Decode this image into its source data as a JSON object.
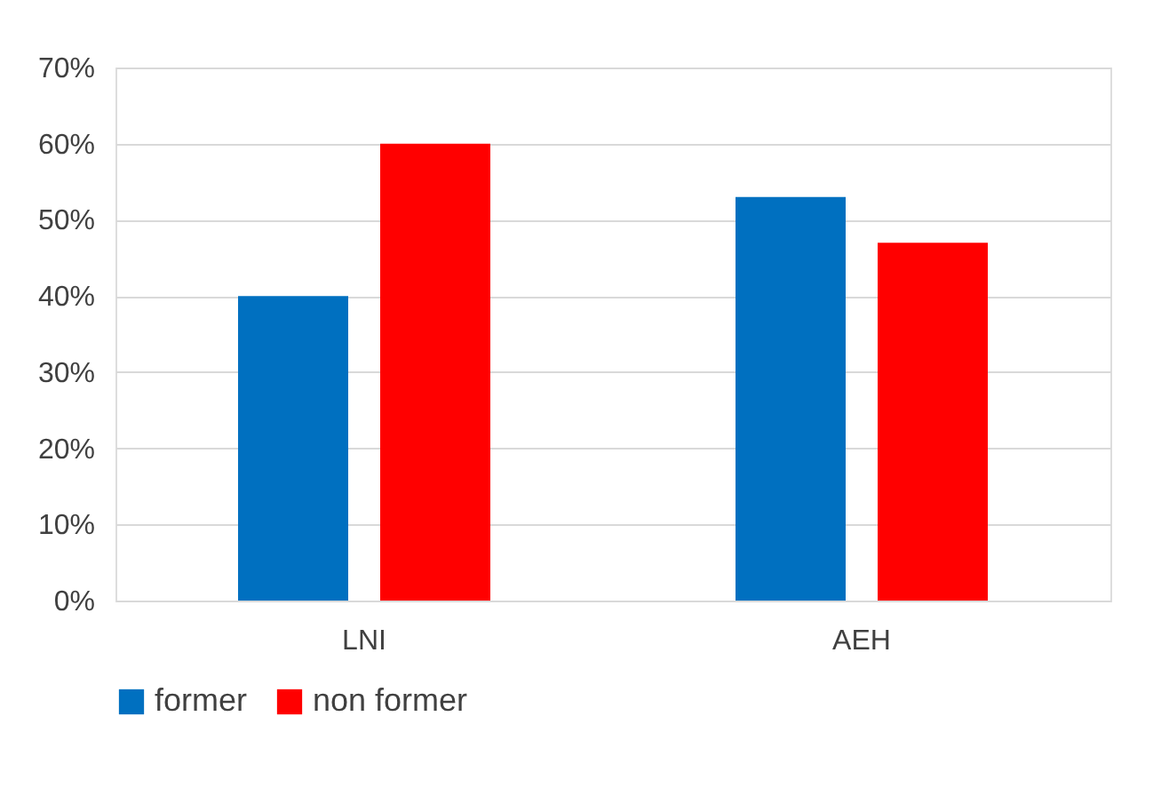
{
  "chart_data": {
    "type": "bar",
    "categories": [
      "LNI",
      "AEH"
    ],
    "series": [
      {
        "name": "former",
        "color": "#0070c0",
        "values": [
          40,
          53
        ]
      },
      {
        "name": "non former",
        "color": "#ff0000",
        "values": [
          60,
          47
        ]
      }
    ],
    "ylim": [
      0,
      70
    ],
    "yticks": [
      {
        "value": 0,
        "label": "0%"
      },
      {
        "value": 10,
        "label": "10%"
      },
      {
        "value": 20,
        "label": "20%"
      },
      {
        "value": 30,
        "label": "30%"
      },
      {
        "value": 40,
        "label": "40%"
      },
      {
        "value": 50,
        "label": "50%"
      },
      {
        "value": 60,
        "label": "60%"
      },
      {
        "value": 70,
        "label": "70%"
      }
    ],
    "grid": "y",
    "legend": "bottom"
  }
}
